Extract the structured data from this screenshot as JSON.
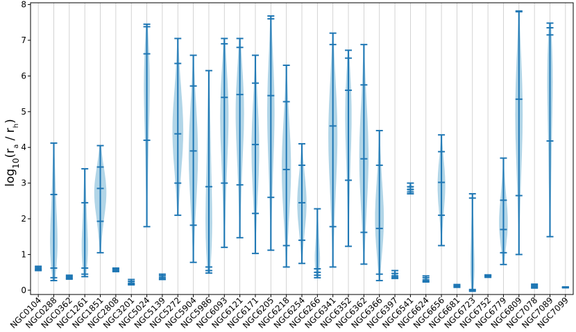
{
  "chart_data": {
    "type": "violin",
    "ylabel": "log10(r_a / r_h)",
    "ylim": [
      -0.12,
      8.05
    ],
    "yticks": [
      0,
      1,
      2,
      3,
      4,
      5,
      6,
      7,
      8
    ],
    "grid": "vertical",
    "colors": {
      "body": "#9ecae1",
      "line": "#1f77b4"
    },
    "categories": [
      "NGC0104",
      "NGC0288",
      "NGC0362",
      "NGC1261",
      "NGC1851",
      "NGC2808",
      "NGC3201",
      "NGC5024",
      "NGC5139",
      "NGC5272",
      "NGC5904",
      "NGC5986",
      "NGC6093",
      "NGC6121",
      "NGC6171",
      "NGC6205",
      "NGC6218",
      "NGC6254",
      "NGC6266",
      "NGC6341",
      "NGC6352",
      "NGC6362",
      "NGC6366",
      "NGC6397",
      "NGC6541",
      "NGC6624",
      "NGC6656",
      "NGC6681",
      "NGC6723",
      "NGC6752",
      "NGC6779",
      "NGC6809",
      "NGC7078",
      "NGC7089",
      "NGC7099"
    ],
    "series": [
      {
        "min": 0.55,
        "max": 0.67,
        "q": [
          0.57,
          0.6,
          0.64
        ],
        "w": 0.4
      },
      {
        "min": 0.27,
        "max": 4.12,
        "q": [
          0.35,
          0.62,
          2.68
        ],
        "w": 0.7
      },
      {
        "min": 0.31,
        "max": 0.42,
        "q": [
          0.33,
          0.36,
          0.39
        ],
        "w": 0.35
      },
      {
        "min": 0.38,
        "max": 3.4,
        "q": [
          0.45,
          0.62,
          2.45
        ],
        "w": 0.6
      },
      {
        "min": 1.05,
        "max": 4.05,
        "q": [
          1.93,
          2.85,
          3.45
        ],
        "w": 0.8
      },
      {
        "min": 0.52,
        "max": 0.62,
        "q": [
          0.54,
          0.57,
          0.6
        ],
        "w": 0.4
      },
      {
        "min": 0.15,
        "max": 0.3,
        "q": [
          0.17,
          0.2,
          0.25
        ],
        "w": 0.35
      },
      {
        "min": 1.78,
        "max": 7.45,
        "q": [
          4.2,
          6.62,
          7.38
        ],
        "w": 0.5
      },
      {
        "min": 0.3,
        "max": 0.45,
        "q": [
          0.32,
          0.36,
          0.41
        ],
        "w": 0.35
      },
      {
        "min": 2.1,
        "max": 7.05,
        "q": [
          3.0,
          4.38,
          6.35
        ],
        "w": 0.7
      },
      {
        "min": 0.78,
        "max": 6.58,
        "q": [
          1.82,
          3.9,
          5.72
        ],
        "w": 0.6
      },
      {
        "min": 0.48,
        "max": 6.15,
        "q": [
          0.55,
          0.65,
          2.9
        ],
        "w": 0.7
      },
      {
        "min": 1.2,
        "max": 7.05,
        "q": [
          3.0,
          5.4,
          6.9
        ],
        "w": 0.6
      },
      {
        "min": 1.47,
        "max": 7.05,
        "q": [
          2.95,
          5.48,
          6.8
        ],
        "w": 0.6
      },
      {
        "min": 1.03,
        "max": 6.58,
        "q": [
          2.15,
          4.08,
          5.8
        ],
        "w": 0.5
      },
      {
        "min": 1.12,
        "max": 7.68,
        "q": [
          2.6,
          5.45,
          7.6
        ],
        "w": 0.5
      },
      {
        "min": 0.65,
        "max": 6.3,
        "q": [
          1.25,
          3.38,
          5.28
        ],
        "w": 0.6
      },
      {
        "min": 0.75,
        "max": 4.1,
        "q": [
          1.4,
          2.45,
          3.5
        ],
        "w": 0.6
      },
      {
        "min": 0.35,
        "max": 2.28,
        "q": [
          0.42,
          0.5,
          0.6
        ],
        "w": 0.5
      },
      {
        "min": 0.65,
        "max": 7.2,
        "q": [
          1.78,
          4.6,
          6.88
        ],
        "w": 0.6
      },
      {
        "min": 1.23,
        "max": 6.72,
        "q": [
          3.08,
          5.6,
          6.5
        ],
        "w": 0.5
      },
      {
        "min": 0.73,
        "max": 6.88,
        "q": [
          1.62,
          3.68,
          5.75
        ],
        "w": 0.6
      },
      {
        "min": 0.27,
        "max": 4.47,
        "q": [
          0.45,
          1.73,
          3.5
        ],
        "w": 0.6
      },
      {
        "min": 0.33,
        "max": 0.55,
        "q": [
          0.36,
          0.4,
          0.47
        ],
        "w": 0.4
      },
      {
        "min": 2.7,
        "max": 3.0,
        "q": [
          2.75,
          2.82,
          2.9
        ],
        "w": 0.45
      },
      {
        "min": 0.23,
        "max": 0.4,
        "q": [
          0.25,
          0.29,
          0.35
        ],
        "w": 0.35
      },
      {
        "min": 1.25,
        "max": 4.35,
        "q": [
          2.1,
          3.02,
          3.88
        ],
        "w": 0.5
      },
      {
        "min": 0.08,
        "max": 0.16,
        "q": [
          0.1,
          0.12,
          0.14
        ],
        "w": 0.35
      },
      {
        "min": -0.03,
        "max": 2.7,
        "q": [
          0.0,
          0.02,
          2.58
        ],
        "w": 0.45
      },
      {
        "min": 0.36,
        "max": 0.43,
        "q": [
          0.38,
          0.4,
          0.42
        ],
        "w": 0.3
      },
      {
        "min": 0.72,
        "max": 3.7,
        "q": [
          1.05,
          1.7,
          2.52
        ],
        "w": 0.6
      },
      {
        "min": 1.0,
        "max": 7.82,
        "q": [
          2.65,
          5.35,
          7.8
        ],
        "w": 0.5
      },
      {
        "min": 0.06,
        "max": 0.17,
        "q": [
          0.08,
          0.11,
          0.14
        ],
        "w": 0.35
      },
      {
        "min": 1.5,
        "max": 7.48,
        "q": [
          4.18,
          7.15,
          7.35
        ],
        "w": 0.55
      },
      {
        "min": 0.07,
        "max": 0.09,
        "q": [
          0.07,
          0.08,
          0.09
        ],
        "w": 0.2
      }
    ]
  }
}
